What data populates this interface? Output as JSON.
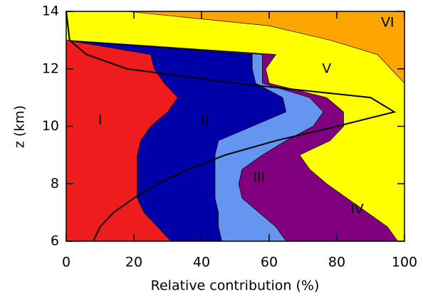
{
  "chart_data": {
    "type": "stacked-area-horizontal",
    "xlabel": "Relative contribution (%)",
    "ylabel": "z (km)",
    "xlim": [
      0,
      100
    ],
    "xticks": [
      0,
      20,
      40,
      60,
      80,
      100
    ],
    "ylim": [
      6,
      14
    ],
    "yticks": [
      6,
      8,
      10,
      12,
      14
    ],
    "y": [
      6,
      6.5,
      7,
      7.5,
      8,
      8.5,
      9,
      9.5,
      10,
      10.5,
      11,
      11.5,
      12,
      12.5,
      13,
      13.5,
      14
    ],
    "series": [
      {
        "name": "I",
        "color": "#ee1c1c",
        "values": [
          31,
          27,
          23,
          21,
          21,
          21,
          21,
          22,
          25,
          30,
          33,
          29,
          26,
          25,
          0,
          0,
          0
        ]
      },
      {
        "name": "II",
        "color": "#0000a8",
        "values": [
          15,
          18,
          22,
          23,
          23,
          23,
          23,
          23,
          30,
          35,
          31,
          27,
          29,
          30,
          0,
          0,
          0
        ]
      },
      {
        "name": "III",
        "color": "#6495f0",
        "values": [
          19,
          17,
          12,
          8,
          7,
          8,
          14,
          20,
          18,
          11,
          8,
          2,
          3,
          3,
          0,
          0,
          0
        ]
      },
      {
        "name": "IV",
        "color": "#800080",
        "values": [
          33,
          33,
          32,
          31,
          26,
          20,
          11,
          13,
          9,
          6,
          5,
          2,
          1,
          4,
          0,
          0,
          0
        ]
      },
      {
        "name": "V",
        "color": "#ffff00",
        "values": [
          2,
          5,
          11,
          17,
          23,
          28,
          31,
          22,
          18,
          18,
          23,
          40,
          37,
          30,
          78,
          60,
          18
        ]
      },
      {
        "name": "VI",
        "color": "#ffa500",
        "values": [
          0,
          0,
          0,
          0,
          0,
          0,
          0,
          0,
          0,
          0,
          0,
          0,
          4,
          8,
          22,
          40,
          82
        ]
      }
    ],
    "curve": {
      "color": "#000000",
      "values": [
        8,
        10,
        14,
        20,
        27,
        36,
        47,
        62,
        80,
        97,
        90,
        50,
        18,
        6,
        1,
        0.5,
        0
      ]
    }
  }
}
